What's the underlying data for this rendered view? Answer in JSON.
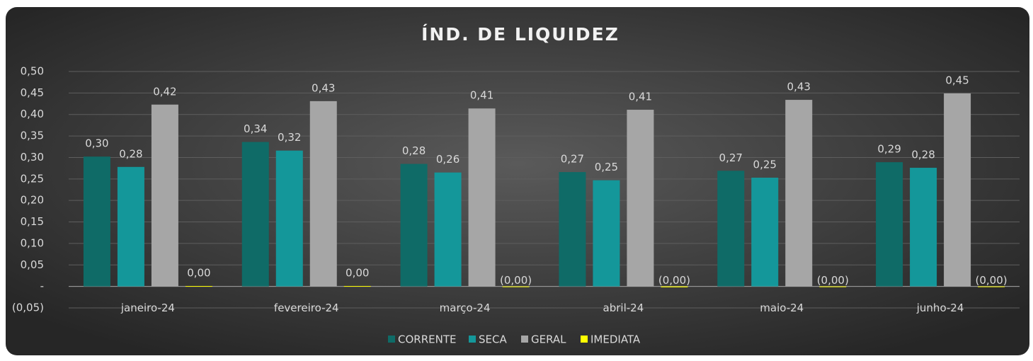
{
  "chart_data": {
    "type": "bar",
    "title": "ÍND. DE LIQUIDEZ",
    "categories": [
      "janeiro-24",
      "fevereiro-24",
      "março-24",
      "abril-24",
      "maio-24",
      "junho-24"
    ],
    "series": [
      {
        "name": "CORRENTE",
        "color": "#0f6b67",
        "values": [
          0.302,
          0.336,
          0.285,
          0.266,
          0.269,
          0.289
        ],
        "value_labels": [
          "0,30",
          "0,34",
          "0,28",
          "0,27",
          "0,27",
          "0,29"
        ]
      },
      {
        "name": "SECA",
        "color": "#14979a",
        "values": [
          0.278,
          0.316,
          0.265,
          0.247,
          0.253,
          0.276
        ],
        "value_labels": [
          "0,28",
          "0,32",
          "0,26",
          "0,25",
          "0,25",
          "0,28"
        ]
      },
      {
        "name": "GERAL",
        "color": "#a6a6a6",
        "values": [
          0.423,
          0.431,
          0.414,
          0.411,
          0.434,
          0.449
        ],
        "value_labels": [
          "0,42",
          "0,43",
          "0,41",
          "0,41",
          "0,43",
          "0,45"
        ]
      },
      {
        "name": "IMEDIATA",
        "color": "#ffff00",
        "values": [
          0.001,
          0.001,
          -0.001,
          -0.002,
          -0.001,
          -0.001
        ],
        "value_labels": [
          "0,00",
          "0,00",
          "(0,00)",
          "(0,00)",
          "(0,00)",
          "(0,00)"
        ]
      }
    ],
    "ylim": [
      -0.05,
      0.5
    ],
    "yticks": [
      {
        "value": -0.05,
        "label": "(0,05)"
      },
      {
        "value": 0,
        "label": "-"
      },
      {
        "value": 0.05,
        "label": "0,05"
      },
      {
        "value": 0.1,
        "label": "0,10"
      },
      {
        "value": 0.15,
        "label": "0,15"
      },
      {
        "value": 0.2,
        "label": "0,20"
      },
      {
        "value": 0.25,
        "label": "0,25"
      },
      {
        "value": 0.3,
        "label": "0,30"
      },
      {
        "value": 0.35,
        "label": "0,35"
      },
      {
        "value": 0.4,
        "label": "0,40"
      },
      {
        "value": 0.45,
        "label": "0,45"
      },
      {
        "value": 0.5,
        "label": "0,50"
      }
    ],
    "grid": true,
    "legend": "bottom"
  }
}
